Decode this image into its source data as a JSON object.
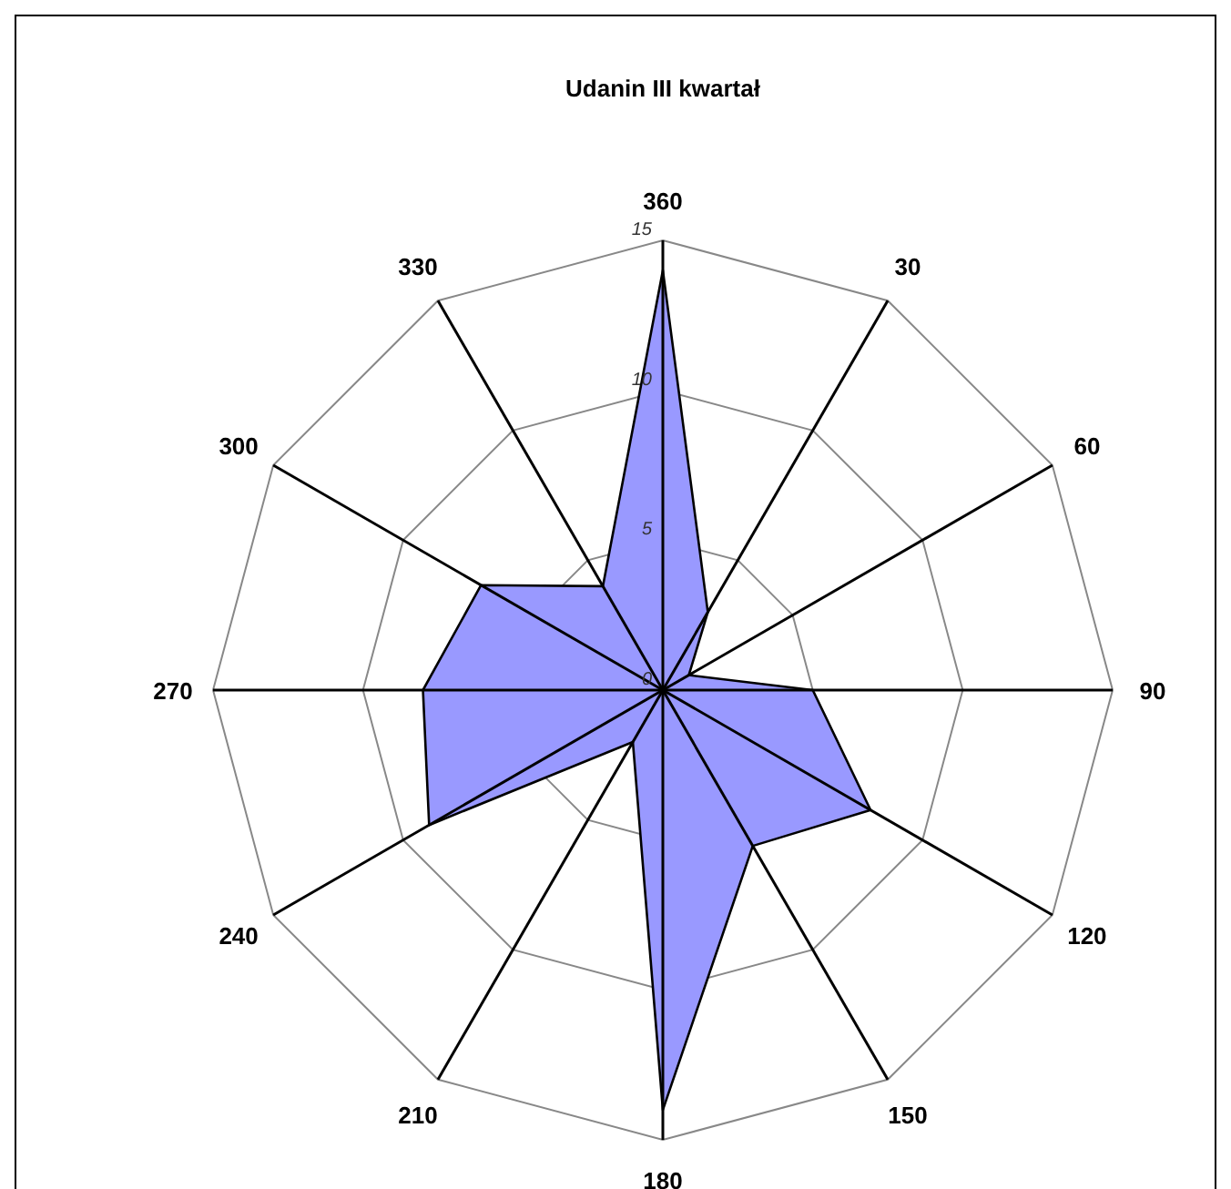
{
  "chart_data": {
    "type": "radar",
    "title": "Udanin III kwartał",
    "categories": [
      "360",
      "30",
      "60",
      "90",
      "120",
      "150",
      "180",
      "210",
      "240",
      "270",
      "300",
      "330"
    ],
    "series": [
      {
        "color": "#9999ff",
        "values": [
          14,
          3,
          1,
          5,
          8,
          6,
          14,
          2,
          9,
          8,
          7,
          4
        ]
      }
    ],
    "ylim": [
      0,
      15
    ],
    "yticks": [
      0,
      5,
      10,
      15
    ],
    "grid": true
  }
}
